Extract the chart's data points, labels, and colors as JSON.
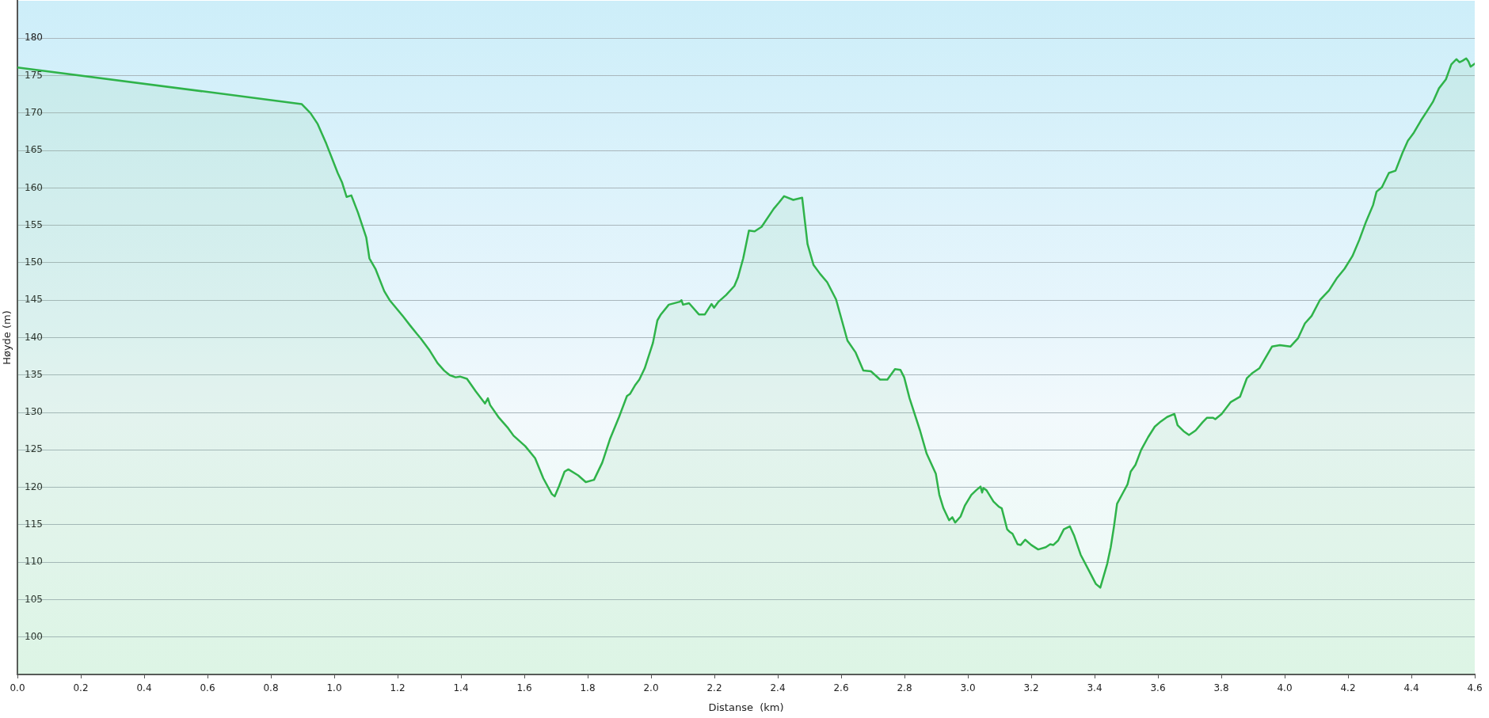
{
  "chart_data": {
    "type": "area",
    "xlabel": "Distanse  (km)",
    "ylabel": "Høyde (m)",
    "color": "#2fb34a",
    "x": [
      0,
      0.897,
      0.925,
      0.947,
      0.975,
      1.011,
      1.025,
      1.039,
      1.054,
      1.075,
      1.101,
      1.111,
      1.13,
      1.158,
      1.175,
      1.218,
      1.24,
      1.261,
      1.273,
      1.301,
      1.326,
      1.347,
      1.364,
      1.383,
      1.397,
      1.419,
      1.447,
      1.476,
      1.485,
      1.492,
      1.52,
      1.549,
      1.566,
      1.603,
      1.634,
      1.66,
      1.687,
      1.696,
      1.71,
      1.727,
      1.739,
      1.77,
      1.794,
      1.82,
      1.846,
      1.87,
      1.899,
      1.924,
      1.934,
      1.949,
      1.963,
      1.98,
      2.006,
      2.02,
      2.031,
      2.056,
      2.091,
      2.096,
      2.101,
      2.12,
      2.151,
      2.17,
      2.191,
      2.199,
      2.213,
      2.237,
      2.263,
      2.274,
      2.291,
      2.309,
      2.327,
      2.349,
      2.387,
      2.403,
      2.42,
      2.449,
      2.477,
      2.494,
      2.513,
      2.534,
      2.556,
      2.584,
      2.62,
      2.646,
      2.67,
      2.694,
      2.723,
      2.746,
      2.77,
      2.787,
      2.799,
      2.816,
      2.849,
      2.87,
      2.899,
      2.91,
      2.923,
      2.941,
      2.951,
      2.96,
      2.977,
      2.991,
      3.011,
      3.026,
      3.04,
      3.045,
      3.049,
      3.059,
      3.081,
      3.098,
      3.107,
      3.124,
      3.131,
      3.141,
      3.157,
      3.167,
      3.181,
      3.2,
      3.222,
      3.246,
      3.26,
      3.27,
      3.285,
      3.303,
      3.322,
      3.336,
      3.356,
      3.382,
      3.404,
      3.418,
      3.44,
      3.451,
      3.461,
      3.471,
      3.49,
      3.504,
      3.514,
      3.529,
      3.547,
      3.569,
      3.59,
      3.609,
      3.629,
      3.652,
      3.662,
      3.681,
      3.698,
      3.719,
      3.741,
      3.755,
      3.774,
      3.781,
      3.801,
      3.83,
      3.859,
      3.881,
      3.899,
      3.92,
      3.96,
      3.985,
      4.018,
      4.042,
      4.064,
      4.085,
      4.111,
      4.14,
      4.164,
      4.189,
      4.214,
      4.236,
      4.257,
      4.279,
      4.29,
      4.307,
      4.329,
      4.35,
      4.372,
      4.389,
      4.408,
      4.43,
      4.447,
      4.468,
      4.487,
      4.509,
      4.526,
      4.542,
      4.552,
      4.562,
      4.573,
      4.58,
      4.587,
      4.6
    ],
    "values": [
      176.1,
      171.2,
      170.0,
      168.6,
      165.9,
      162.0,
      160.7,
      158.8,
      159.0,
      156.7,
      153.4,
      150.6,
      149.2,
      146.2,
      145.0,
      142.8,
      141.6,
      140.5,
      139.9,
      138.3,
      136.6,
      135.6,
      135.0,
      134.7,
      134.8,
      134.5,
      132.8,
      131.2,
      131.9,
      131.0,
      129.3,
      127.9,
      126.9,
      125.5,
      123.9,
      121.2,
      119.1,
      118.8,
      120.2,
      122.1,
      122.4,
      121.6,
      120.7,
      121.0,
      123.3,
      126.4,
      129.4,
      132.2,
      132.5,
      133.6,
      134.4,
      135.9,
      139.3,
      142.3,
      143.1,
      144.4,
      144.8,
      145.0,
      144.4,
      144.6,
      143.1,
      143.1,
      144.5,
      144.0,
      144.8,
      145.7,
      146.9,
      148.0,
      150.6,
      154.3,
      154.2,
      154.8,
      157.2,
      158.0,
      158.9,
      158.4,
      158.7,
      152.5,
      149.7,
      148.5,
      147.4,
      145.1,
      139.6,
      138.0,
      135.6,
      135.5,
      134.4,
      134.4,
      135.8,
      135.7,
      134.7,
      131.9,
      127.6,
      124.5,
      121.8,
      119.0,
      117.2,
      115.6,
      116.0,
      115.3,
      116.1,
      117.6,
      119.0,
      119.6,
      120.1,
      119.3,
      119.9,
      119.6,
      118.1,
      117.4,
      117.2,
      114.4,
      114.1,
      113.8,
      112.4,
      112.3,
      113.0,
      112.3,
      111.7,
      112.0,
      112.4,
      112.3,
      112.9,
      114.4,
      114.8,
      113.5,
      111.0,
      108.9,
      107.1,
      106.6,
      109.8,
      112.0,
      114.7,
      117.8,
      119.3,
      120.4,
      122.1,
      123.0,
      125.0,
      126.7,
      128.1,
      128.8,
      129.4,
      129.8,
      128.3,
      127.5,
      127.0,
      127.6,
      128.7,
      129.3,
      129.3,
      129.1,
      129.8,
      131.4,
      132.1,
      134.6,
      135.3,
      135.9,
      138.8,
      139.0,
      138.8,
      139.9,
      141.9,
      142.9,
      145.0,
      146.3,
      147.9,
      149.2,
      150.9,
      153.1,
      155.5,
      157.7,
      159.5,
      160.1,
      162.0,
      162.3,
      164.7,
      166.3,
      167.4,
      169.0,
      170.1,
      171.5,
      173.3,
      174.5,
      176.5,
      177.2,
      176.8,
      177.0,
      177.3,
      176.9,
      176.2,
      176.6
    ],
    "xlim": [
      0,
      4.6
    ],
    "ylim": [
      95,
      185
    ],
    "xticks": [
      {
        "value": 0,
        "label": "0.0"
      },
      0.2,
      0.4,
      0.6,
      0.8,
      {
        "value": 1,
        "label": "1.0"
      },
      1.2,
      1.4,
      1.6,
      1.8,
      {
        "value": 2,
        "label": "2.0"
      },
      2.2,
      2.4,
      2.6,
      2.8,
      {
        "value": 3,
        "label": "3.0"
      },
      3.2,
      3.4,
      3.6,
      3.8,
      {
        "value": 4,
        "label": "4.0"
      },
      4.2,
      4.4,
      4.6
    ],
    "yticks": [
      100,
      105,
      110,
      115,
      120,
      125,
      130,
      135,
      140,
      145,
      150,
      155,
      160,
      165,
      170,
      175,
      180
    ],
    "grid": "y"
  }
}
